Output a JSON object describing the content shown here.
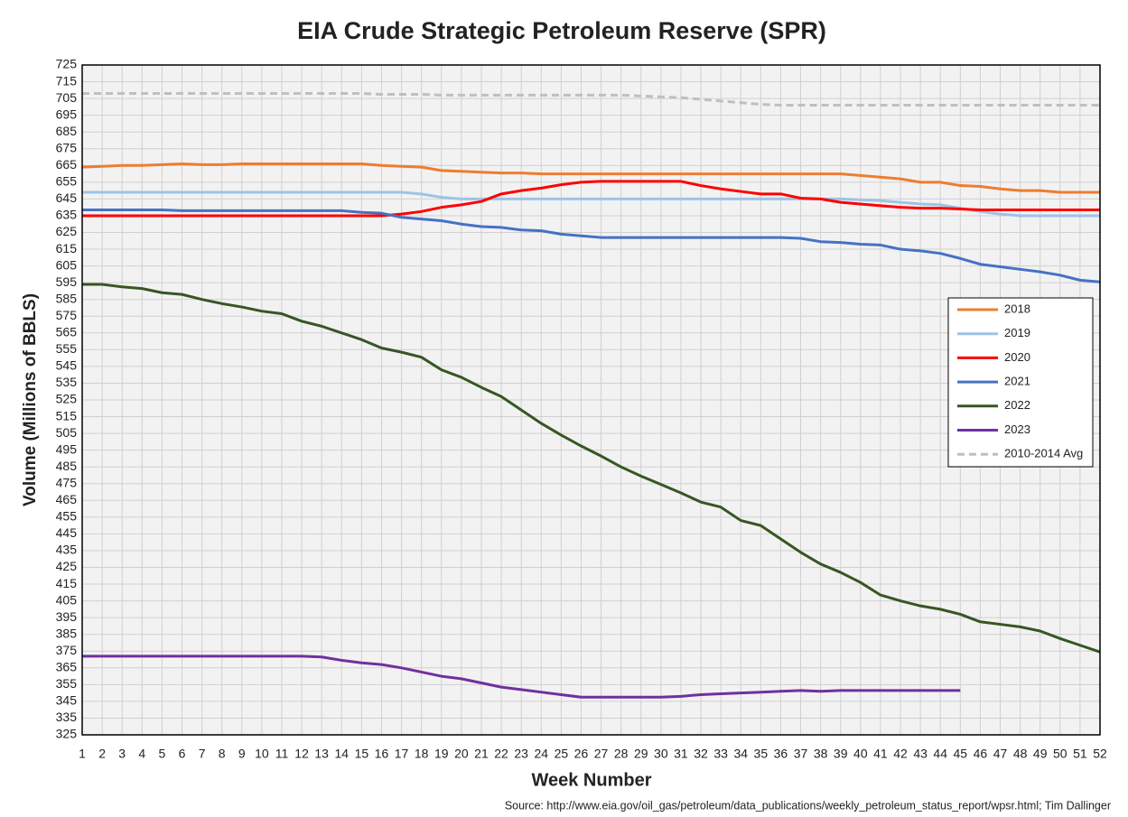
{
  "chart_data": {
    "type": "line",
    "title": "EIA Crude Strategic Petroleum Reserve (SPR)",
    "x_label": "Week Number",
    "y_label": "Volume (Millions of BBLS)",
    "source": "Source: http://www.eia.gov/oil_gas/petroleum/data_publications/weekly_petroleum_status_report/wpsr.html; Tim Dallinger",
    "x": [
      1,
      2,
      3,
      4,
      5,
      6,
      7,
      8,
      9,
      10,
      11,
      12,
      13,
      14,
      15,
      16,
      17,
      18,
      19,
      20,
      21,
      22,
      23,
      24,
      25,
      26,
      27,
      28,
      29,
      30,
      31,
      32,
      33,
      34,
      35,
      36,
      37,
      38,
      39,
      40,
      41,
      42,
      43,
      44,
      45,
      46,
      47,
      48,
      49,
      50,
      51,
      52
    ],
    "xlim": [
      1,
      52
    ],
    "xticks": [
      1,
      2,
      3,
      4,
      5,
      6,
      7,
      8,
      9,
      10,
      11,
      12,
      13,
      14,
      15,
      16,
      17,
      18,
      19,
      20,
      21,
      22,
      23,
      24,
      25,
      26,
      27,
      28,
      29,
      30,
      31,
      32,
      33,
      34,
      35,
      36,
      37,
      38,
      39,
      40,
      41,
      42,
      43,
      44,
      45,
      46,
      47,
      48,
      49,
      50,
      51,
      52
    ],
    "ylim": [
      325,
      725
    ],
    "yticks": [
      325,
      335,
      345,
      355,
      365,
      375,
      385,
      395,
      405,
      415,
      425,
      435,
      445,
      455,
      465,
      475,
      485,
      495,
      505,
      515,
      525,
      535,
      545,
      555,
      565,
      575,
      585,
      595,
      605,
      615,
      625,
      635,
      645,
      655,
      665,
      675,
      685,
      695,
      705,
      715,
      725
    ],
    "grid": true,
    "legend": "center right",
    "series": [
      {
        "name": "2018",
        "color": "#ed7d31",
        "dashed": false,
        "values": [
          664,
          664.5,
          665,
          665,
          665.5,
          666,
          665.5,
          665.5,
          666,
          666,
          666,
          666,
          666,
          666,
          666,
          665,
          664.5,
          664,
          662,
          661.5,
          661,
          660.5,
          660.5,
          660,
          660,
          660,
          660,
          660,
          660,
          660,
          660,
          660,
          660,
          660,
          660,
          660,
          660,
          660,
          660,
          659,
          658,
          657,
          655,
          655,
          653,
          652.5,
          651,
          650,
          650,
          649,
          649,
          649
        ]
      },
      {
        "name": "2019",
        "color": "#9dc3e6",
        "dashed": false,
        "values": [
          649,
          649,
          649,
          649,
          649,
          649,
          649,
          649,
          649,
          649,
          649,
          649,
          649,
          649,
          649,
          649,
          649,
          648,
          646,
          645,
          645,
          645,
          645,
          645,
          645,
          645,
          645,
          645,
          645,
          645,
          645,
          645,
          645,
          645,
          645,
          645,
          645,
          645,
          645,
          644.5,
          644,
          643,
          642,
          641.5,
          639.5,
          637.5,
          636,
          635,
          635,
          635,
          635,
          635
        ]
      },
      {
        "name": "2020",
        "color": "#ff0000",
        "dashed": false,
        "values": [
          635,
          635,
          635,
          635,
          635,
          635,
          635,
          635,
          635,
          635,
          635,
          635,
          635,
          635,
          635,
          635,
          636,
          637.5,
          640,
          641.5,
          643.5,
          648,
          650,
          651.5,
          653.5,
          655,
          655.5,
          655.5,
          655.5,
          655.5,
          655.5,
          653,
          651,
          649.5,
          648,
          648,
          645.5,
          645,
          643,
          642,
          641,
          640,
          639.5,
          639.5,
          639,
          638.5,
          638.5,
          638.5,
          638.5,
          638.5,
          638.5,
          638.5
        ]
      },
      {
        "name": "2021",
        "color": "#4472c4",
        "dashed": false,
        "values": [
          638.5,
          638.5,
          638.5,
          638.5,
          638.5,
          638,
          638,
          638,
          638,
          638,
          638,
          638,
          638,
          638,
          637,
          636.5,
          634,
          633,
          632,
          630,
          628.5,
          628,
          626.5,
          626,
          624,
          623,
          622,
          622,
          622,
          622,
          622,
          622,
          622,
          622,
          622,
          622,
          621.5,
          619.5,
          619,
          618,
          617.5,
          615,
          614,
          612.5,
          609.5,
          606,
          604.5,
          603,
          601.5,
          599.5,
          596.5,
          595.5
        ]
      },
      {
        "name": "2022",
        "color": "#375623",
        "dashed": false,
        "values": [
          594,
          594,
          592.5,
          591.5,
          589,
          588,
          585,
          582.5,
          580.5,
          578,
          576.5,
          572,
          569,
          565,
          561,
          556,
          553.5,
          550.5,
          543,
          538.5,
          532.5,
          527,
          519,
          511,
          504,
          497.5,
          491.5,
          485,
          479.5,
          474.5,
          469.5,
          464,
          461,
          453,
          450,
          442,
          434,
          427,
          422,
          416,
          408.5,
          405,
          402,
          400,
          397,
          392.5,
          391,
          389.5,
          387,
          382.5,
          378.5,
          374.5
        ]
      },
      {
        "name": "2023",
        "color": "#7030a0",
        "dashed": false,
        "values": [
          372,
          372,
          372,
          372,
          372,
          372,
          372,
          372,
          372,
          372,
          372,
          372,
          371.5,
          369.5,
          368,
          367,
          365,
          362.5,
          360,
          358.5,
          356,
          353.5,
          352,
          350.5,
          349,
          347.5,
          347.5,
          347.5,
          347.5,
          347.5,
          348,
          349,
          349.5,
          350,
          350.5,
          351,
          351.5,
          351,
          351.5,
          351.5,
          351.5,
          351.5,
          351.5,
          351.5,
          351.5,
          null,
          null,
          null,
          null,
          null,
          null,
          null
        ]
      },
      {
        "name": "2010-2014 Avg",
        "color": "#bfbfbf",
        "dashed": true,
        "values": [
          708,
          708,
          708,
          708,
          708,
          708,
          708,
          708,
          708,
          708,
          708,
          708,
          708,
          708,
          708,
          707.5,
          707.5,
          707.5,
          707,
          707,
          707,
          707,
          707,
          707,
          707,
          707,
          707,
          707,
          706.5,
          706,
          705.5,
          704.5,
          703.5,
          702.5,
          701.5,
          701,
          701,
          701,
          701,
          701,
          701,
          701,
          701,
          701,
          701,
          701,
          701,
          701,
          701,
          701,
          701,
          701
        ]
      }
    ]
  }
}
